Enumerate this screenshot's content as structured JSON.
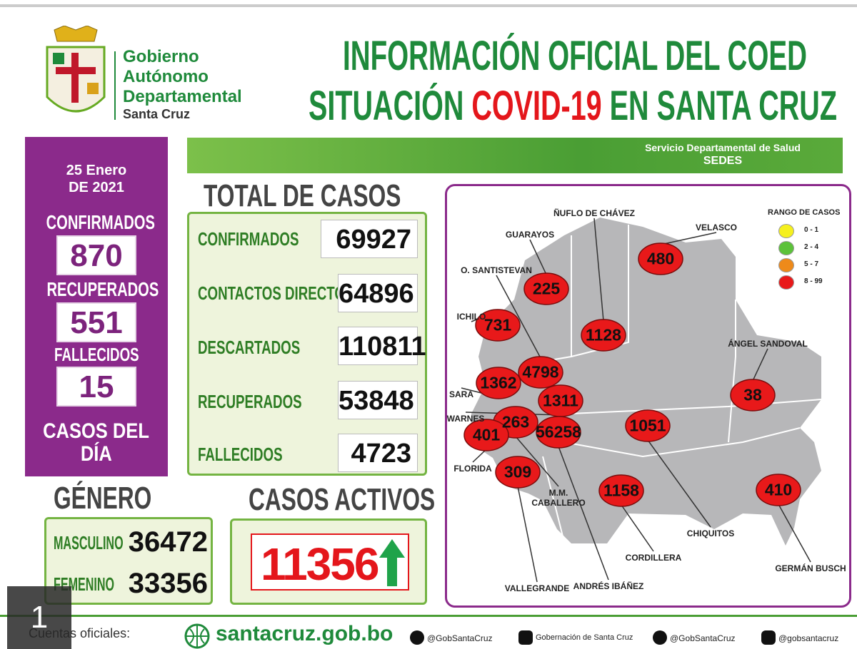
{
  "header": {
    "org": [
      "Gobierno",
      "Autónomo",
      "Departamental"
    ],
    "org_place": "Santa Cruz",
    "title_line1": "INFORMACIÓN OFICIAL DEL COED",
    "title_line2": [
      "SITUACIÓN ",
      "COVID-19",
      " EN SANTA CRUZ"
    ]
  },
  "banner": {
    "service": "Servicio Departamental de Salud",
    "acronym": "SEDES"
  },
  "daily": {
    "date": [
      "25 Enero",
      "DE 2021"
    ],
    "items": [
      {
        "label": "CONFIRMADOS",
        "value": 870
      },
      {
        "label": "RECUPERADOS",
        "value": 551
      },
      {
        "label": "FALLECIDOS",
        "value": 15
      }
    ],
    "caption": [
      "CASOS DEL",
      "DÍA"
    ]
  },
  "totals": {
    "title": "TOTAL DE CASOS",
    "rows": [
      {
        "label": "CONFIRMADOS",
        "value": 69927
      },
      {
        "label": "CONTACTOS DIRECTOS",
        "value": 64896
      },
      {
        "label": "DESCARTADOS",
        "value": 110811
      },
      {
        "label": "RECUPERADOS",
        "value": 53848
      },
      {
        "label": "FALLECIDOS",
        "value": 4723
      }
    ]
  },
  "gender": {
    "title": "GÉNERO",
    "rows": [
      {
        "label": "MASCULINO",
        "value": 36472
      },
      {
        "label": "FEMENINO",
        "value": 33356
      }
    ]
  },
  "active": {
    "title": "CASOS ACTIVOS",
    "value": 11356
  },
  "map": {
    "legend_title": "RANGO DE CASOS",
    "legend": [
      {
        "label": "0 - 1",
        "color": "#f5f01e"
      },
      {
        "label": "2 - 4",
        "color": "#5cc23a"
      },
      {
        "label": "5 - 7",
        "color": "#ee8a1a"
      },
      {
        "label": "8 - 99",
        "color": "#e8191a"
      }
    ],
    "provinces": [
      {
        "name": "GUARAYOS",
        "value": 225
      },
      {
        "name": "VELASCO",
        "value": 480
      },
      {
        "name": "ÑUFLO DE CHÁVEZ",
        "value": 1128
      },
      {
        "name": "ICHILO",
        "value": 731
      },
      {
        "name": "O. SANTISTEVAN",
        "value": 4798
      },
      {
        "name": "SARA",
        "value": 1362
      },
      {
        "name": "WARNES",
        "value": 1311
      },
      {
        "name": "M.M. CABALLERO",
        "value": 263
      },
      {
        "name": "ANDRÉS IBÁÑEZ",
        "value": 56258
      },
      {
        "name": "FLORIDA",
        "value": 401
      },
      {
        "name": "CHIQUITOS",
        "value": 1051
      },
      {
        "name": "ÁNGEL SANDOVAL",
        "value": 38
      },
      {
        "name": "VALLEGRANDE",
        "value": 309
      },
      {
        "name": "CORDILLERA",
        "value": 1158
      },
      {
        "name": "GERMÁN BUSCH",
        "value": 410
      }
    ]
  },
  "footer": {
    "label": "Cuentas oficiales:",
    "site": "santacruz.gob.bo",
    "accounts": [
      "@GobSantaCruz",
      "Gobernación de Santa Cruz",
      "@GobSantaCruz",
      "@gobsantacruz"
    ]
  },
  "page_number": "1"
}
